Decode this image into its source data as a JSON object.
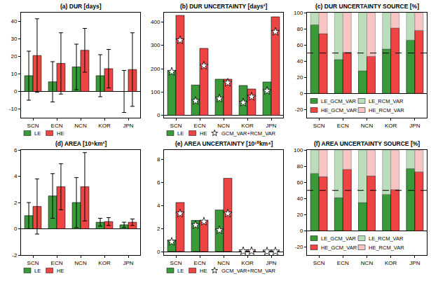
{
  "chart_data": [
    {
      "type": "bar",
      "title": "(a) DUR [days]",
      "categories": [
        "SCN",
        "ECN",
        "NCN",
        "KOR",
        "JPN"
      ],
      "series": [
        {
          "name": "LE",
          "color": "#3a9a3a",
          "values": [
            9,
            5.5,
            14,
            9,
            0
          ],
          "error": [
            14,
            11.5,
            13,
            12,
            12
          ]
        },
        {
          "name": "HE",
          "color": "#ef4444",
          "values": [
            20.5,
            16,
            23.5,
            13,
            12.5
          ],
          "error": [
            21,
            17.5,
            12.5,
            11,
            21
          ]
        }
      ],
      "ylim": [
        -15,
        45
      ],
      "yticks": [
        -10,
        0,
        10,
        20,
        30,
        40
      ],
      "grid": false,
      "legend": "bottom"
    },
    {
      "type": "bar",
      "title": "(b) DUR UNCERTAINTY [days²]",
      "categories": [
        "SCN",
        "ECN",
        "NCN",
        "KOR",
        "JPN"
      ],
      "series": [
        {
          "name": "LE",
          "color": "#3a9a3a",
          "values": [
            190,
            130,
            155,
            128,
            143
          ],
          "var_sum": [
            187,
            62,
            72,
            55,
            105
          ]
        },
        {
          "name": "HE",
          "color": "#ef4444",
          "values": [
            428,
            287,
            155,
            113,
            422
          ],
          "var_sum": [
            322,
            213,
            140,
            80,
            358
          ]
        }
      ],
      "var_sum_legend": {
        "name": "GCM_VAR+RCM_VAR",
        "marker": "star",
        "color": "#ffffff"
      },
      "ylim": [
        -10,
        440
      ],
      "yticks": [
        0,
        100,
        200,
        300,
        400
      ],
      "grid": false,
      "legend": "bottom"
    },
    {
      "type": "bar",
      "title": "(c) DUR UNCERTAINTY SOURCE [%]",
      "categories": [
        "SCN",
        "ECN",
        "NCN",
        "KOR",
        "JPN"
      ],
      "stacked": true,
      "stacks": [
        [
          {
            "name": "LE_GCM_VAR",
            "color": "#3a9a3a",
            "values": [
              85,
              42,
              28,
              55,
              66
            ]
          },
          {
            "name": "LE_RCM_VAR",
            "color": "#b9deb9",
            "values": [
              15,
              58,
              72,
              45,
              34
            ]
          }
        ],
        [
          {
            "name": "HE_GCM_VAR",
            "color": "#ef4444",
            "values": [
              74,
              51,
              46,
              81,
              78
            ]
          },
          {
            "name": "HE_RCM_VAR",
            "color": "#f8c4c4",
            "values": [
              26,
              49,
              54,
              19,
              22
            ]
          }
        ]
      ],
      "hline": 50,
      "ylim": [
        -30,
        100
      ],
      "yticks": [
        -20,
        0,
        20,
        40,
        60,
        80,
        100
      ],
      "grid": false,
      "legend": "lower left"
    },
    {
      "type": "bar",
      "title": "(d) AREA [10⁵km²]",
      "categories": [
        "SCN",
        "ECN",
        "NCN",
        "KOR",
        "JPN"
      ],
      "series": [
        {
          "name": "LE",
          "color": "#3a9a3a",
          "values": [
            1.0,
            2.5,
            2.0,
            0.5,
            0.3
          ],
          "error": [
            1.0,
            1.7,
            1.9,
            0.3,
            0.2
          ]
        },
        {
          "name": "HE",
          "color": "#ef4444",
          "values": [
            1.7,
            3.2,
            3.2,
            0.55,
            0.5
          ],
          "error": [
            2.1,
            1.75,
            2.6,
            0.3,
            0.25
          ]
        }
      ],
      "ylim": [
        -2,
        6
      ],
      "yticks": [
        -2,
        0,
        2,
        4,
        6
      ],
      "grid": false,
      "legend": "bottom"
    },
    {
      "type": "bar",
      "title": "(e) AREA UNCERTAINTY [10¹⁰km⁴]",
      "categories": [
        "SCN",
        "ECN",
        "NCN",
        "KOR",
        "JPN"
      ],
      "series": [
        {
          "name": "LE",
          "color": "#3a9a3a",
          "values": [
            1.0,
            2.7,
            3.6,
            0.05,
            0.02
          ],
          "var_sum": [
            0.85,
            2.3,
            1.85,
            0.04,
            0.02
          ]
        },
        {
          "name": "HE",
          "color": "#ef4444",
          "values": [
            4.25,
            2.7,
            6.35,
            0.05,
            0.02
          ],
          "var_sum": [
            3.3,
            2.6,
            3.3,
            0.05,
            0.02
          ]
        }
      ],
      "var_sum_legend": {
        "name": "GCM_VAR+RCM_VAR",
        "marker": "star",
        "color": "#ffffff"
      },
      "ylim": [
        -0.3,
        8.8
      ],
      "yticks": [
        0,
        2,
        4,
        6,
        8
      ],
      "grid": false,
      "legend": "bottom"
    },
    {
      "type": "bar",
      "title": "(f) AREA UNCERTAINTY SOURCE [%]",
      "categories": [
        "SCN",
        "ECN",
        "NCN",
        "KOR",
        "JPN"
      ],
      "stacked": true,
      "stacks": [
        [
          {
            "name": "LE_GCM_VAR",
            "color": "#3a9a3a",
            "values": [
              71,
              41,
              35,
              45,
              77
            ]
          },
          {
            "name": "LE_RCM_VAR",
            "color": "#b9deb9",
            "values": [
              29,
              59,
              65,
              55,
              23
            ]
          }
        ],
        [
          {
            "name": "HE_GCM_VAR",
            "color": "#ef4444",
            "values": [
              67,
              76,
              68,
              51,
              73
            ]
          },
          {
            "name": "HE_RCM_VAR",
            "color": "#f8c4c4",
            "values": [
              33,
              24,
              32,
              49,
              27
            ]
          }
        ]
      ],
      "hline": 50,
      "ylim": [
        -30,
        100
      ],
      "yticks": [
        -20,
        0,
        20,
        40,
        60,
        80,
        100
      ],
      "grid": false,
      "legend": "lower left"
    }
  ]
}
